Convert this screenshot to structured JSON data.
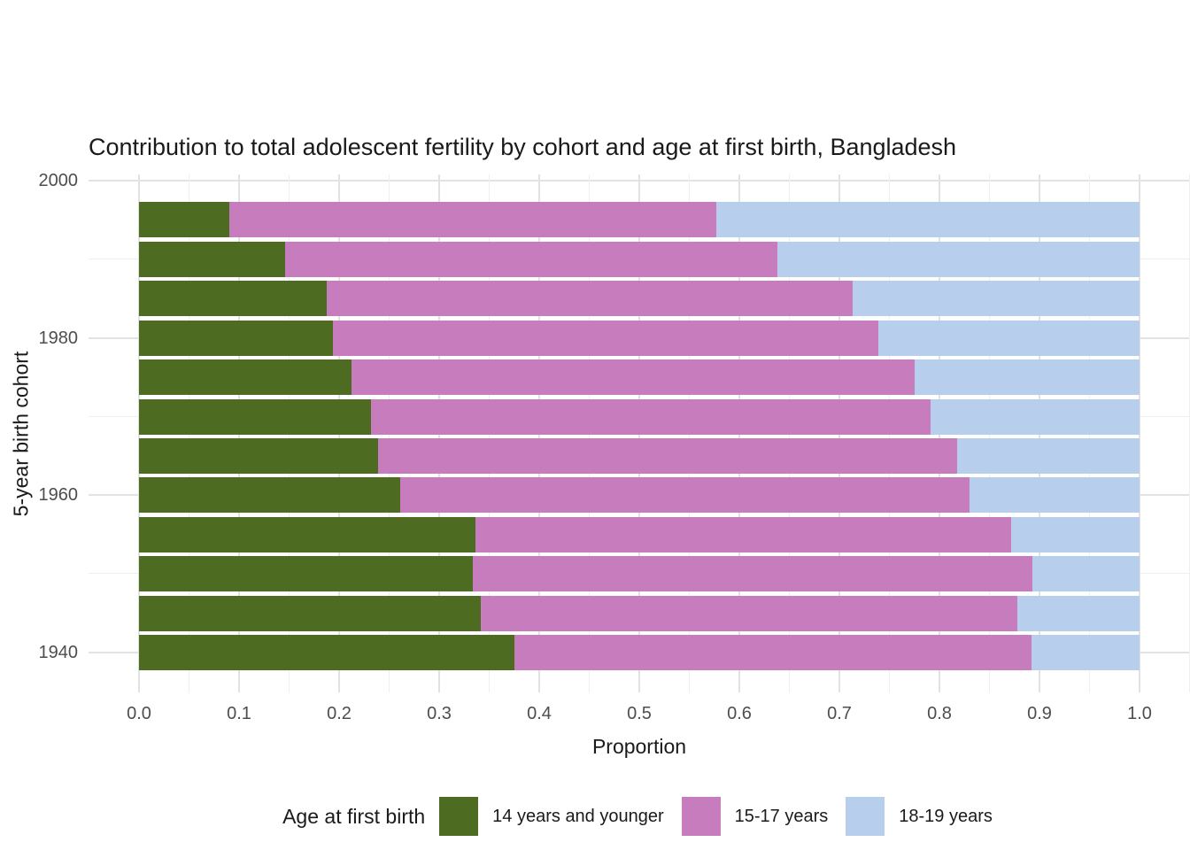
{
  "title": "Contribution to total adolescent fertility by cohort and age at first birth,  Bangladesh",
  "axes": {
    "x": {
      "label": "Proportion",
      "ticks": [
        "0.0",
        "0.1",
        "0.2",
        "0.3",
        "0.4",
        "0.5",
        "0.6",
        "0.7",
        "0.8",
        "0.9",
        "1.0"
      ]
    },
    "y": {
      "label": "5-year birth cohort",
      "ticks": [
        "2000",
        "1980",
        "1960",
        "1940"
      ]
    }
  },
  "legend": {
    "title": "Age at first birth",
    "items": [
      {
        "label": "14 years and younger",
        "color": "#4D6B21"
      },
      {
        "label": "15-17 years",
        "color": "#C77CBE"
      },
      {
        "label": "18-19 years",
        "color": "#B7CEEC"
      }
    ]
  },
  "colors": {
    "age_14_younger": "#4D6B21",
    "age_15_17": "#C77CBE",
    "age_18_19": "#B7CEEC",
    "grid_major": "#e2e2e2",
    "grid_minor": "#efefef",
    "tick_text": "#4d4d4d",
    "background": "#ffffff"
  },
  "chart_data": {
    "type": "bar",
    "orientation": "horizontal-stacked",
    "title": "Contribution to total adolescent fertility by cohort and age at first birth,  Bangladesh",
    "xlabel": "Proportion",
    "ylabel": "5-year birth cohort",
    "xlim": [
      0,
      1.05
    ],
    "ylim": [
      1935,
      2000
    ],
    "grid": true,
    "legend_position": "bottom",
    "categories": [
      1940,
      1945,
      1950,
      1955,
      1960,
      1965,
      1970,
      1975,
      1980,
      1985,
      1990,
      1995
    ],
    "series": [
      {
        "name": "14 years and younger",
        "color": "#4D6B21",
        "values": [
          0.375,
          0.342,
          0.334,
          0.336,
          0.261,
          0.239,
          0.232,
          0.212,
          0.194,
          0.188,
          0.146,
          0.09
        ]
      },
      {
        "name": "15-17 years",
        "color": "#C77CBE",
        "values": [
          0.517,
          0.536,
          0.559,
          0.536,
          0.569,
          0.579,
          0.559,
          0.563,
          0.545,
          0.525,
          0.492,
          0.487
        ]
      },
      {
        "name": "18-19 years",
        "color": "#B7CEEC",
        "values": [
          0.108,
          0.122,
          0.107,
          0.128,
          0.17,
          0.182,
          0.209,
          0.225,
          0.261,
          0.287,
          0.362,
          0.423
        ]
      }
    ]
  }
}
